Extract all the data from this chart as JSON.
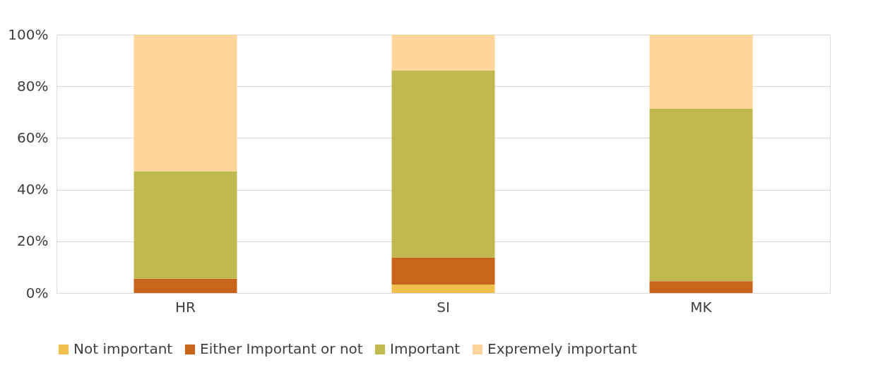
{
  "chart_data": {
    "type": "bar",
    "stacked": true,
    "categories": [
      "HR",
      "SI",
      "MK"
    ],
    "series": [
      {
        "name": "Not important",
        "color": "#f0c04c",
        "values": [
          0,
          3.3,
          0
        ]
      },
      {
        "name": "Either Important or not",
        "color": "#c8651b",
        "values": [
          5.5,
          10.4,
          4.6
        ]
      },
      {
        "name": "Important",
        "color": "#c0b950",
        "values": [
          41.5,
          72.4,
          66.7
        ]
      },
      {
        "name": "Expremely important",
        "color": "#fed59a",
        "values": [
          53,
          13.9,
          28.7
        ]
      }
    ],
    "ylim": [
      0,
      100
    ],
    "yticks": [
      {
        "value": 0,
        "label": "0%"
      },
      {
        "value": 20,
        "label": "20%"
      },
      {
        "value": 40,
        "label": "40%"
      },
      {
        "value": 60,
        "label": "60%"
      },
      {
        "value": 80,
        "label": "80%"
      },
      {
        "value": 100,
        "label": "100%"
      }
    ],
    "grid": "y",
    "legend": "bottom"
  }
}
